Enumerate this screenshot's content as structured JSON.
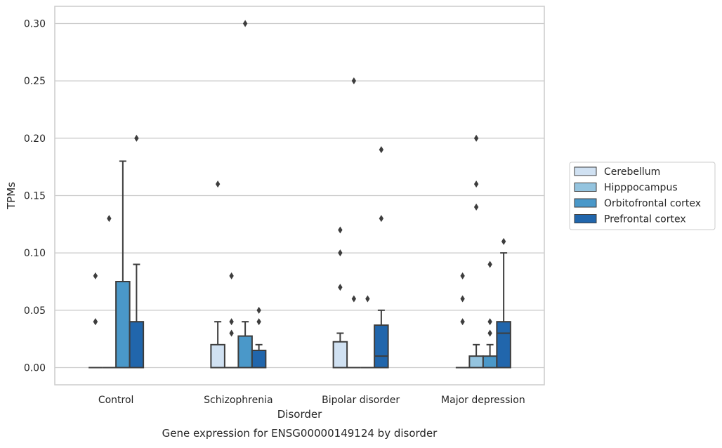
{
  "caption": "Gene expression for ENSG00000149124 by disorder",
  "chart_data": {
    "type": "box",
    "xlabel": "Disorder",
    "ylabel": "TPMs",
    "categories": [
      "Control",
      "Schizophrenia",
      "Bipolar disorder",
      "Major depression"
    ],
    "yticks": [
      "0.00",
      "0.05",
      "0.10",
      "0.15",
      "0.20",
      "0.25",
      "0.30"
    ],
    "ylim": [
      -0.015,
      0.315
    ],
    "grid": true,
    "legend_position": "right",
    "series": [
      {
        "name": "Cerebellum",
        "color": "#d0e1f2",
        "boxes": [
          {
            "q1": 0,
            "median": 0,
            "q3": 0,
            "whisker_low": 0,
            "whisker_high": 0,
            "outliers": [
              0.04,
              0.04,
              0.08
            ]
          },
          {
            "q1": 0,
            "median": 0,
            "q3": 0.02,
            "whisker_low": 0,
            "whisker_high": 0.04,
            "outliers": [
              0.16
            ]
          },
          {
            "q1": 0,
            "median": 0,
            "q3": 0.0225,
            "whisker_low": 0,
            "whisker_high": 0.03,
            "outliers": [
              0.07,
              0.1,
              0.12
            ]
          },
          {
            "q1": 0,
            "median": 0,
            "q3": 0,
            "whisker_low": 0,
            "whisker_high": 0,
            "outliers": [
              0.04,
              0.06,
              0.08
            ]
          }
        ]
      },
      {
        "name": "Hipppocampus",
        "color": "#94c4df",
        "boxes": [
          {
            "q1": 0,
            "median": 0,
            "q3": 0,
            "whisker_low": 0,
            "whisker_high": 0,
            "outliers": [
              0.13
            ]
          },
          {
            "q1": 0,
            "median": 0,
            "q3": 0,
            "whisker_low": 0,
            "whisker_high": 0,
            "outliers": [
              0.03,
              0.04,
              0.08
            ]
          },
          {
            "q1": 0,
            "median": 0,
            "q3": 0,
            "whisker_low": 0,
            "whisker_high": 0,
            "outliers": [
              0.06,
              0.25
            ]
          },
          {
            "q1": 0,
            "median": 0,
            "q3": 0.01,
            "whisker_low": 0,
            "whisker_high": 0.02,
            "outliers": [
              0.14,
              0.16,
              0.2
            ]
          }
        ]
      },
      {
        "name": "Orbitofrontal cortex",
        "color": "#4a98c9",
        "boxes": [
          {
            "q1": 0,
            "median": 0,
            "q3": 0.075,
            "whisker_low": 0,
            "whisker_high": 0.18,
            "outliers": []
          },
          {
            "q1": 0,
            "median": 0,
            "q3": 0.0275,
            "whisker_low": 0,
            "whisker_high": 0.04,
            "outliers": [
              0.3
            ]
          },
          {
            "q1": 0,
            "median": 0,
            "q3": 0,
            "whisker_low": 0,
            "whisker_high": 0,
            "outliers": [
              0.06
            ]
          },
          {
            "q1": 0,
            "median": 0,
            "q3": 0.01,
            "whisker_low": 0,
            "whisker_high": 0.02,
            "outliers": [
              0.03,
              0.04,
              0.09
            ]
          }
        ]
      },
      {
        "name": "Prefrontal cortex",
        "color": "#2166ac",
        "boxes": [
          {
            "q1": 0,
            "median": 0,
            "q3": 0.04,
            "whisker_low": 0,
            "whisker_high": 0.09,
            "outliers": [
              0.2
            ]
          },
          {
            "q1": 0,
            "median": 0,
            "q3": 0.015,
            "whisker_low": 0,
            "whisker_high": 0.02,
            "outliers": [
              0.04,
              0.05
            ]
          },
          {
            "q1": 0,
            "median": 0.01,
            "q3": 0.037,
            "whisker_low": 0,
            "whisker_high": 0.05,
            "outliers": [
              0.13,
              0.19
            ]
          },
          {
            "q1": 0,
            "median": 0.03,
            "q3": 0.04,
            "whisker_low": 0,
            "whisker_high": 0.1,
            "outliers": [
              0.11
            ]
          }
        ]
      }
    ]
  }
}
